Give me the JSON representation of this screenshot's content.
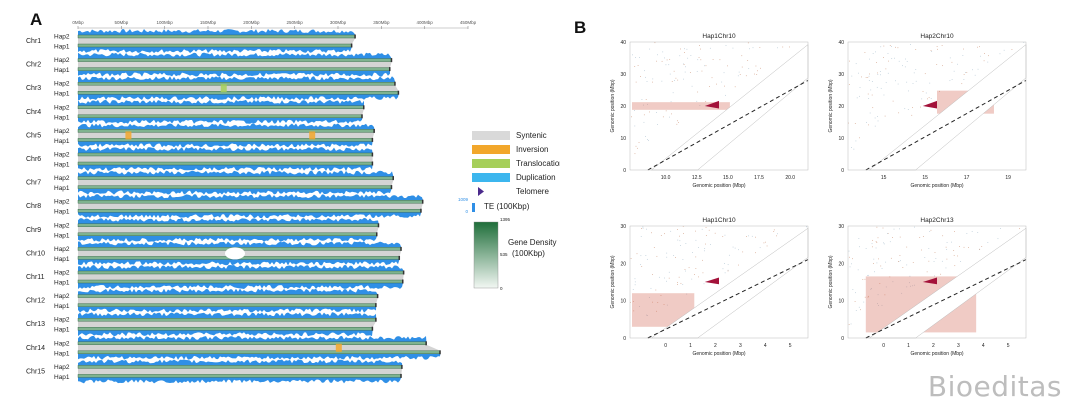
{
  "panel_a": {
    "letter": "A",
    "axis_ticks": [
      "0Mbp",
      "50Mbp",
      "100Mbp",
      "150Mbp",
      "200Mbp",
      "250Mbp",
      "300Mbp",
      "350Mbp",
      "400Mbp",
      "450Mbp"
    ],
    "chromosomes": [
      {
        "name": "Chr1",
        "hap2_mbp": 320,
        "hap1_mbp": 316,
        "label_top": "Hap2",
        "label_bottom": "Hap1"
      },
      {
        "name": "Chr2",
        "hap2_mbp": 362,
        "hap1_mbp": 360,
        "label_top": "Hap2",
        "label_bottom": "Hap1"
      },
      {
        "name": "Chr3",
        "hap2_mbp": 366,
        "hap1_mbp": 370,
        "label_top": "Hap2",
        "label_bottom": "Hap1"
      },
      {
        "name": "Chr4",
        "hap2_mbp": 330,
        "hap1_mbp": 328,
        "label_top": "Hap2",
        "label_bottom": "Hap1"
      },
      {
        "name": "Chr5",
        "hap2_mbp": 342,
        "hap1_mbp": 340,
        "label_top": "Hap2",
        "label_bottom": "Hap1"
      },
      {
        "name": "Chr6",
        "hap2_mbp": 340,
        "hap1_mbp": 340,
        "label_top": "Hap2",
        "label_bottom": "Hap1"
      },
      {
        "name": "Chr7",
        "hap2_mbp": 364,
        "hap1_mbp": 362,
        "label_top": "Hap2",
        "label_bottom": "Hap1"
      },
      {
        "name": "Chr8",
        "hap2_mbp": 398,
        "hap1_mbp": 396,
        "label_top": "Hap2",
        "label_bottom": "Hap1"
      },
      {
        "name": "Chr9",
        "hap2_mbp": 347,
        "hap1_mbp": 345,
        "label_top": "Hap2",
        "label_bottom": "Hap1"
      },
      {
        "name": "Chr10",
        "hap2_mbp": 373,
        "hap1_mbp": 371,
        "label_top": "Hap2",
        "label_bottom": "Hap1"
      },
      {
        "name": "Chr11",
        "hap2_mbp": 376,
        "hap1_mbp": 375,
        "label_top": "Hap2",
        "label_bottom": "Hap1"
      },
      {
        "name": "Chr12",
        "hap2_mbp": 346,
        "hap1_mbp": 344,
        "label_top": "Hap2",
        "label_bottom": "Hap1"
      },
      {
        "name": "Chr13",
        "hap2_mbp": 344,
        "hap1_mbp": 340,
        "label_top": "Hap2",
        "label_bottom": "Hap1"
      },
      {
        "name": "Chr14",
        "hap2_mbp": 402,
        "hap1_mbp": 418,
        "label_top": "Hap2",
        "label_bottom": "Hap1"
      },
      {
        "name": "Chr15",
        "hap2_mbp": 374,
        "hap1_mbp": 373,
        "label_top": "Hap2",
        "label_bottom": "Hap1"
      }
    ],
    "legend": {
      "items": [
        {
          "label": "Syntenic",
          "color": "#d9d9d9",
          "shape": "rect"
        },
        {
          "label": "Inversion",
          "color": "#f2a72b",
          "shape": "rect"
        },
        {
          "label": "Translocation",
          "color": "#a6cf5a",
          "shape": "rect"
        },
        {
          "label": "Duplication",
          "color": "#3cb6ee",
          "shape": "rect"
        },
        {
          "label": "Telomere",
          "color": "#4b2a8c",
          "shape": "triangle"
        }
      ],
      "te_label": "TE (100Kbp)",
      "te_min": "0",
      "te_max": "1009",
      "gd_label_line1": "Gene Density",
      "gd_label_line2": "(100Kbp)",
      "gd_max": "1395",
      "gd_mid": "535",
      "gd_min": "0"
    },
    "colors": {
      "te": "#2f8fe6",
      "gene": "#2e7d4c",
      "syntenic": "#cfcfcf",
      "inversion": "#f2a72b",
      "translocation": "#a6cf5a"
    }
  },
  "panel_b": {
    "letter": "B",
    "plots": [
      {
        "title": "Hap1Chr10",
        "xlabel": "Genomic position (Mbp)",
        "ylabel": "Genomic position (Mbp)",
        "xticks": [
          "10.0",
          "12.5",
          "15.0",
          "17.5",
          "20.0"
        ],
        "yticks": [
          "0",
          "10",
          "20",
          "30",
          "40"
        ]
      },
      {
        "title": "Hap2Chr10",
        "xlabel": "Genomic position (Mbp)",
        "ylabel": "Genomic position (Mbp)",
        "xticks": [
          "15",
          "15",
          "17",
          "19"
        ],
        "yticks": [
          "0",
          "10",
          "20",
          "30",
          "40"
        ]
      },
      {
        "title": "Hap1Chr10",
        "xlabel": "Genomic position (Mbp)",
        "ylabel": "Genomic position (Mbp)",
        "xticks": [
          "0",
          "1",
          "2",
          "3",
          "4",
          "5"
        ],
        "yticks": [
          "0",
          "10",
          "20",
          "30"
        ]
      },
      {
        "title": "Hap2Chr13",
        "xlabel": "Genomic position (Mbp)",
        "ylabel": "Genomic position (Mbp)",
        "xticks": [
          "0",
          "1",
          "2",
          "3",
          "4",
          "5"
        ],
        "yticks": [
          "0",
          "10",
          "20",
          "30"
        ]
      }
    ]
  },
  "watermark": "Bioeditas"
}
